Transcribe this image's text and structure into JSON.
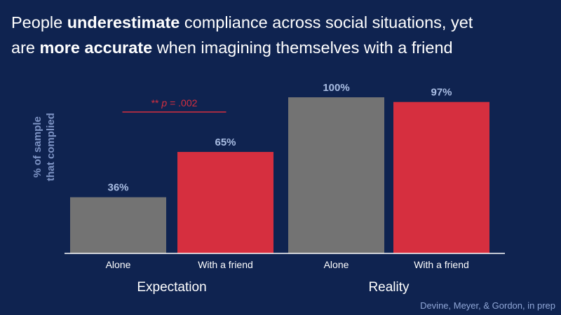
{
  "title": {
    "line1_pre": "People ",
    "line1_bold": "underestimate",
    "line1_post": " compliance across social situations, yet",
    "line2_pre": "are ",
    "line2_bold": "more accurate",
    "line2_post": " when imagining themselves with a friend"
  },
  "source": "Devine, Meyer, & Gordon, in prep",
  "colors": {
    "background": "#0f2350",
    "alone": "#737373",
    "friend": "#d62f3f",
    "value_label": "#a9bde3",
    "axis_label": "#7d93c4",
    "significance": "#d62f3f"
  },
  "chart_data": {
    "type": "bar",
    "ylabel": [
      "% of sample",
      "that complied"
    ],
    "ylim": [
      0,
      100
    ],
    "groups": [
      "Expectation",
      "Reality"
    ],
    "categories": [
      "Alone",
      "With a friend",
      "Alone",
      "With a friend"
    ],
    "group_of_category": [
      0,
      0,
      1,
      1
    ],
    "values": [
      36,
      65,
      100,
      97
    ],
    "value_labels": [
      "36%",
      "65%",
      "100%",
      "97%"
    ],
    "bar_colors": [
      "#737373",
      "#d62f3f",
      "#737373",
      "#d62f3f"
    ],
    "annotation": {
      "stars": "** ",
      "p_italic": "p",
      "rest": " = .002",
      "between": [
        0,
        1
      ]
    }
  }
}
